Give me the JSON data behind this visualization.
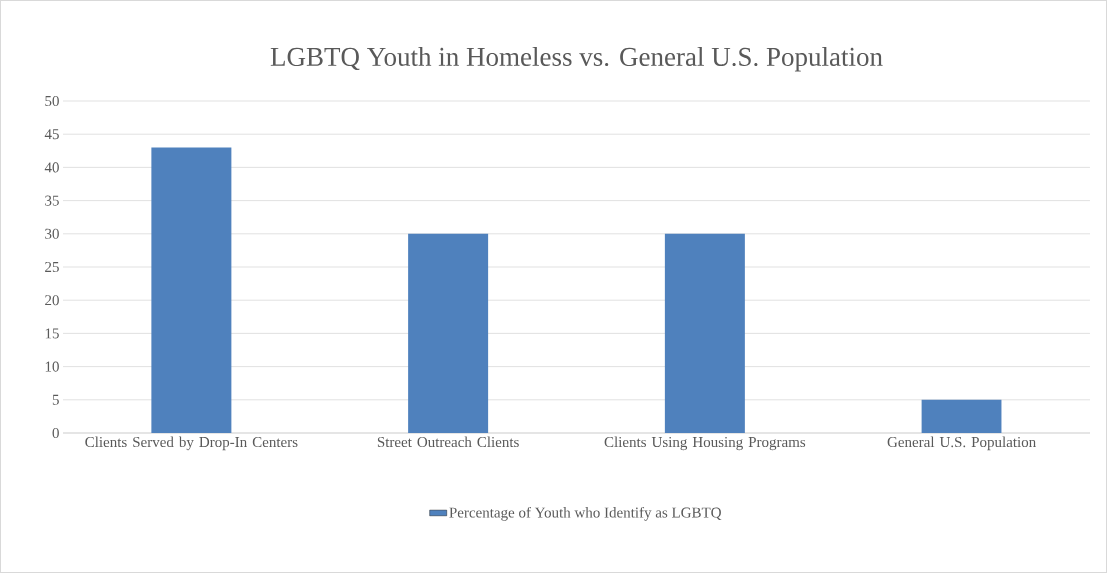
{
  "chart_data": {
    "type": "bar",
    "title": "LGBTQ Youth in Homeless vs. General U.S. Population",
    "categories": [
      "Clients Served by Drop-In Centers",
      "Street Outreach Clients",
      "Clients Using Housing Programs",
      "General U.S. Population"
    ],
    "series": [
      {
        "name": "Percentage of Youth who Identify as LGBTQ",
        "color": "#4f81bd",
        "values": [
          43,
          30,
          30,
          5
        ]
      }
    ],
    "ylim": [
      0,
      50
    ],
    "yticks": [
      0,
      5,
      10,
      15,
      20,
      25,
      30,
      35,
      40,
      45,
      50
    ],
    "grid": "y",
    "legend": "bottom"
  }
}
